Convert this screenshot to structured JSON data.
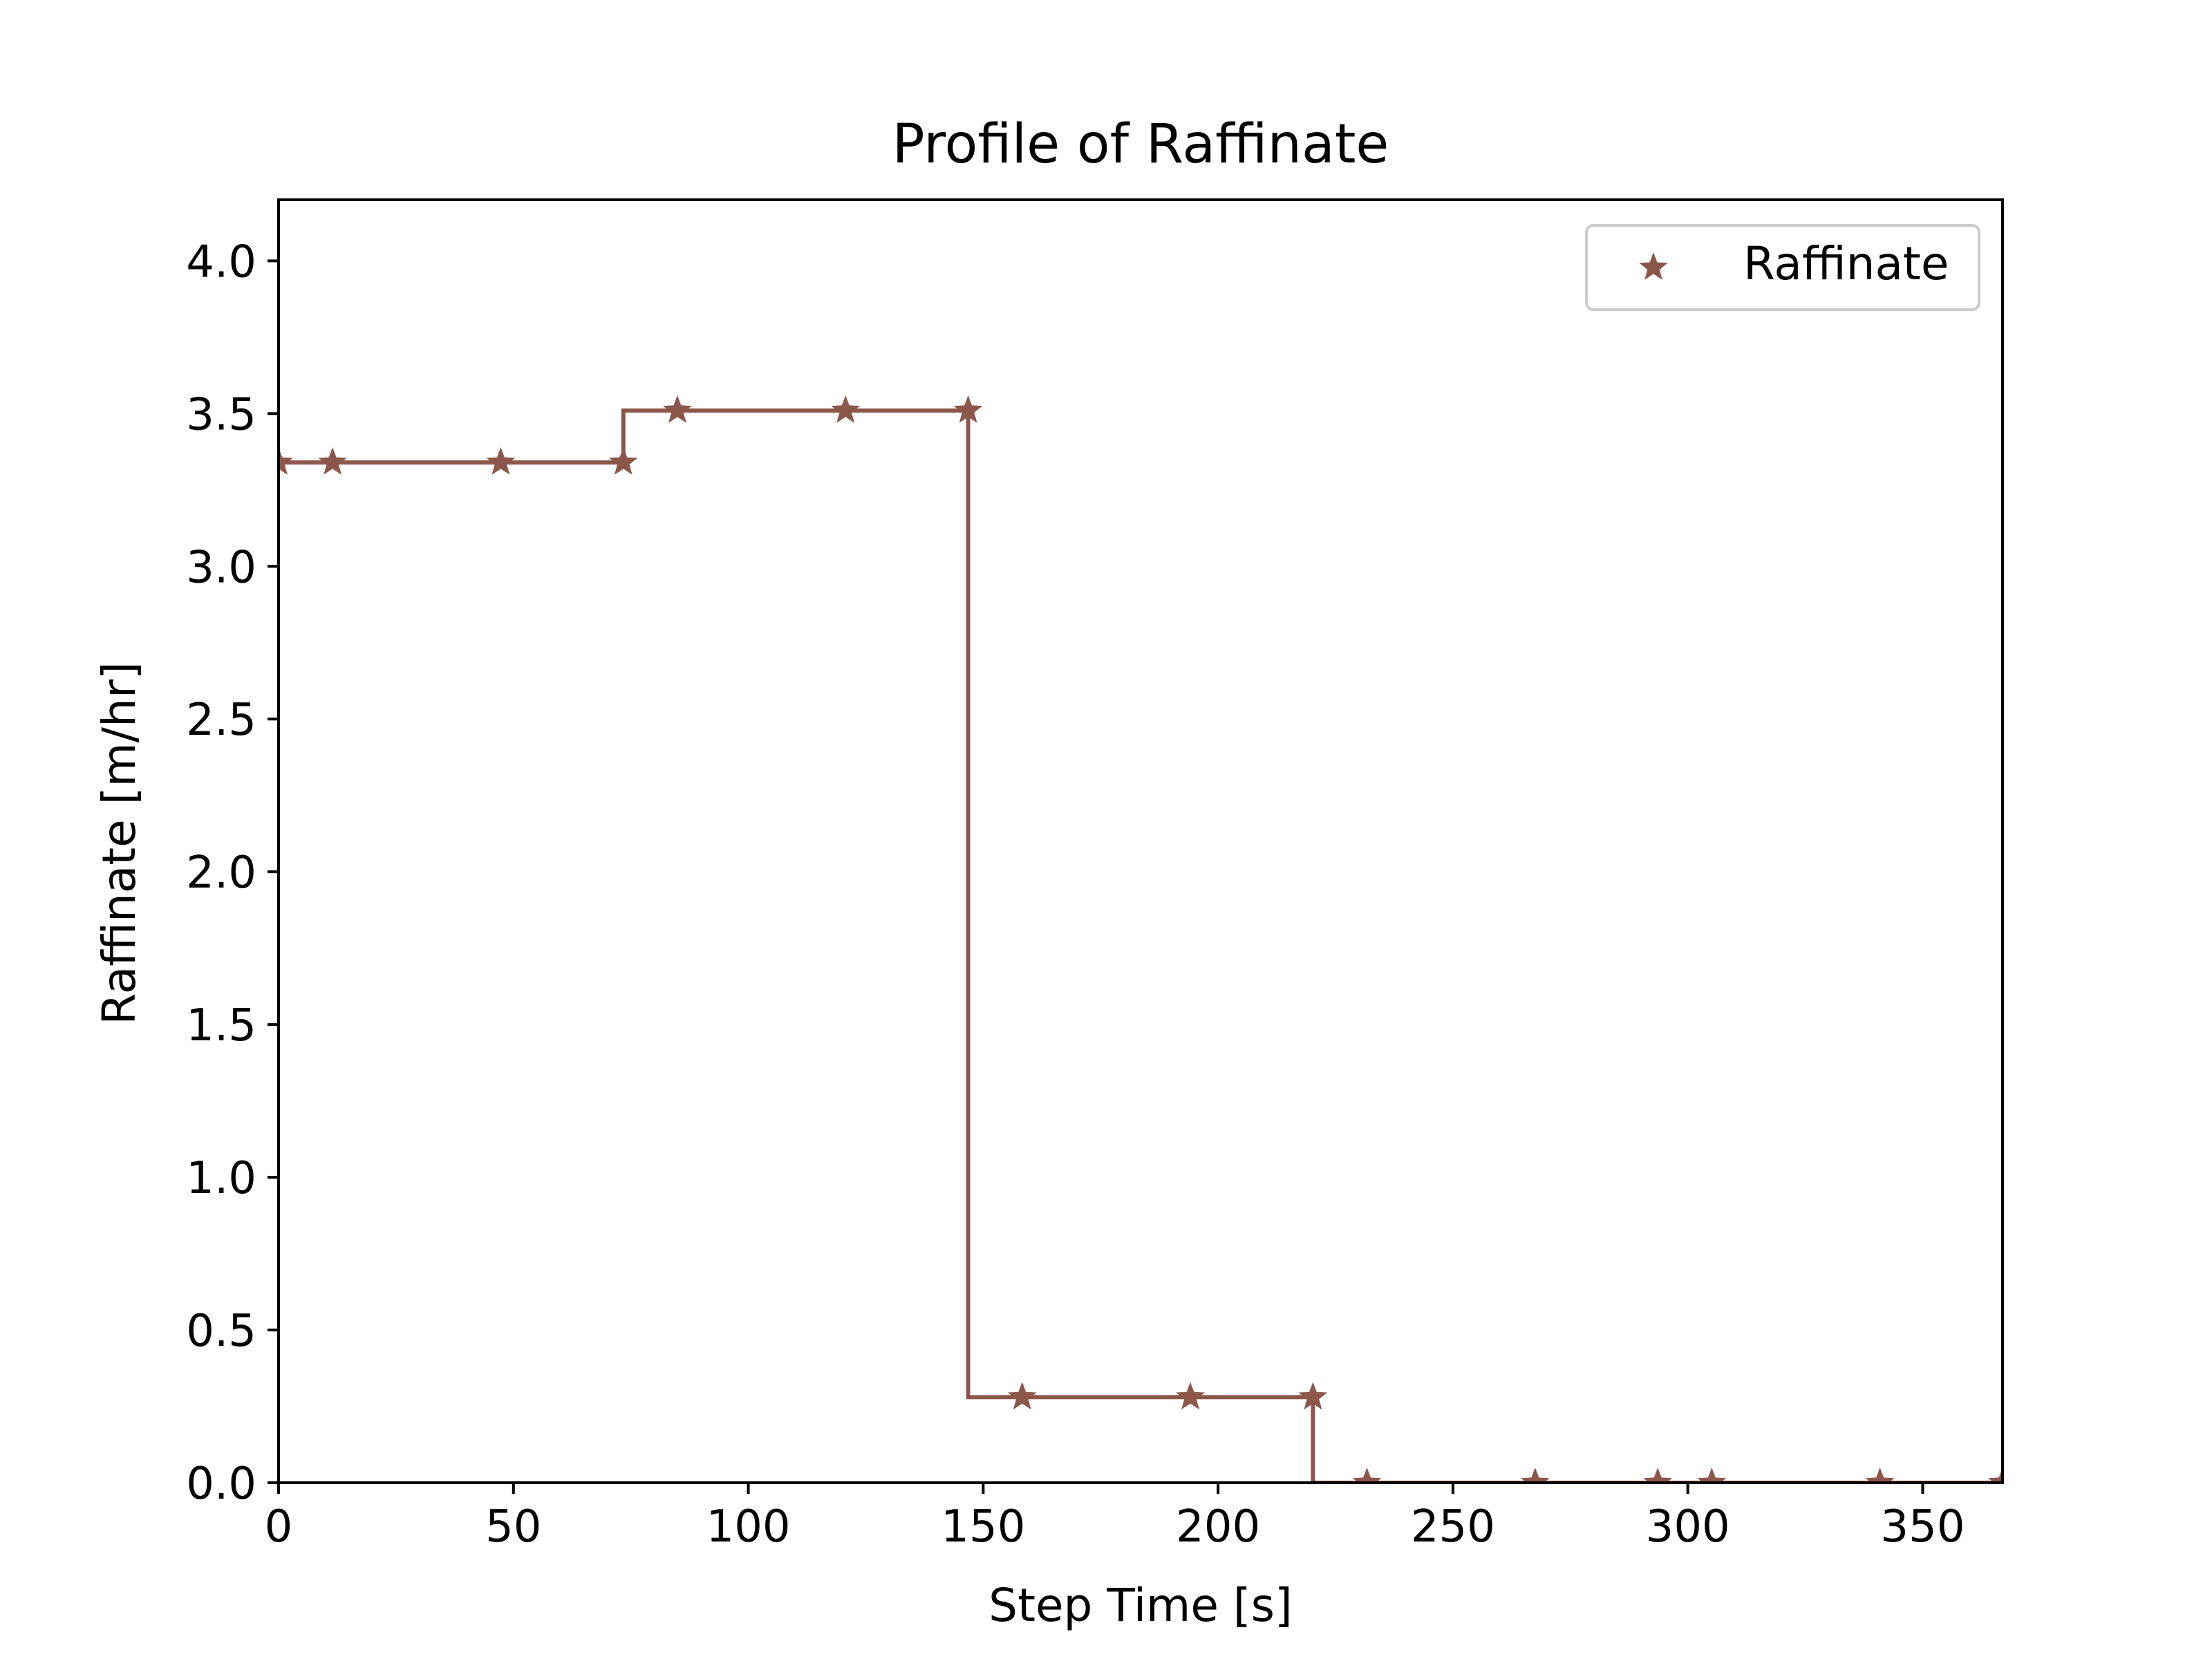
{
  "colors": {
    "series": "#8c564b",
    "axes": "#000000",
    "background": "#ffffff",
    "legend_border": "#cccccc"
  },
  "chart_data": {
    "type": "line",
    "title": "Profile of Raffinate",
    "xlabel": "Step Time [s]",
    "ylabel": "Raffinate [m/hr]",
    "xlim": [
      0,
      367
    ],
    "ylim": [
      0,
      4.2
    ],
    "xticks": [
      0,
      50,
      100,
      150,
      200,
      250,
      300,
      350
    ],
    "yticks": [
      0.0,
      0.5,
      1.0,
      1.5,
      2.0,
      2.5,
      3.0,
      3.5,
      4.0
    ],
    "xtick_labels": [
      "0",
      "50",
      "100",
      "150",
      "200",
      "250",
      "300",
      "350"
    ],
    "ytick_labels": [
      "0.0",
      "0.5",
      "1.0",
      "1.5",
      "2.0",
      "2.5",
      "3.0",
      "3.5",
      "4.0"
    ],
    "grid": false,
    "legend": {
      "placement": "top-right"
    },
    "series": [
      {
        "name": "Raffinate",
        "marker": "star",
        "drawstyle": "steps-post",
        "steps": [
          {
            "x": 0,
            "y": 3.34
          },
          {
            "x": 73.4,
            "y": 3.51
          },
          {
            "x": 146.8,
            "y": 0.28
          },
          {
            "x": 220.2,
            "y": 0.0
          },
          {
            "x": 367,
            "y": 0.0
          }
        ],
        "points": [
          {
            "x": 0,
            "y": 3.34
          },
          {
            "x": 11.5,
            "y": 3.34
          },
          {
            "x": 47.3,
            "y": 3.34
          },
          {
            "x": 73.4,
            "y": 3.34
          },
          {
            "x": 84.9,
            "y": 3.51
          },
          {
            "x": 120.7,
            "y": 3.51
          },
          {
            "x": 146.8,
            "y": 3.51
          },
          {
            "x": 158.3,
            "y": 0.28
          },
          {
            "x": 194.1,
            "y": 0.28
          },
          {
            "x": 220.2,
            "y": 0.28
          },
          {
            "x": 231.7,
            "y": 0.0
          },
          {
            "x": 267.5,
            "y": 0.0
          },
          {
            "x": 293.6,
            "y": 0.0
          },
          {
            "x": 305.1,
            "y": 0.0
          },
          {
            "x": 340.9,
            "y": 0.0
          },
          {
            "x": 367,
            "y": 0.0
          }
        ]
      }
    ]
  }
}
